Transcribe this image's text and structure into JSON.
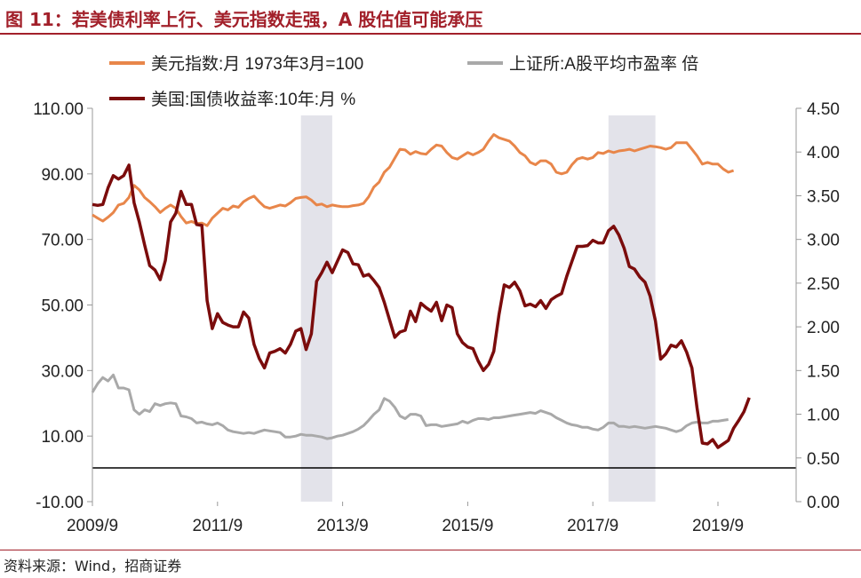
{
  "header": {
    "title": "图 11：若美债利率上行、美元指数走强，A 股估值可能承压"
  },
  "footer": {
    "source": "资料来源：Wind，招商证券"
  },
  "chart_data": {
    "type": "line",
    "x_tick_labels": [
      "2009/9",
      "2011/9",
      "2013/9",
      "2015/9",
      "2017/9",
      "2019/9"
    ],
    "left_axis": {
      "ylim": [
        -10,
        110
      ],
      "ticks": [
        "-10.00",
        "10.00",
        "30.00",
        "50.00",
        "70.00",
        "90.00",
        "110.00"
      ]
    },
    "right_axis": {
      "ylim": [
        0,
        4.5
      ],
      "ticks": [
        "0.00",
        "0.50",
        "1.00",
        "1.50",
        "2.00",
        "2.50",
        "3.00",
        "3.50",
        "4.00",
        "4.50"
      ]
    },
    "shaded_periods": [
      [
        "2013/1",
        "2013/7"
      ],
      [
        "2017/12",
        "2018/9"
      ]
    ],
    "zero_line": 0,
    "colors": {
      "usd": "#e8864a",
      "pe": "#a9a9a9",
      "yield": "#7b0c0c",
      "shade": "#e3e3ea",
      "rule": "#a2202a"
    },
    "series": [
      {
        "name": "美元指数:月 1973年3月=100",
        "axis": "left",
        "x_start": "2009/9",
        "values": [
          77.5,
          76.5,
          75.6,
          76.8,
          78.2,
          80.5,
          81.0,
          82.8,
          86.5,
          85.1,
          82.8,
          81.5,
          80.0,
          78.2,
          79.5,
          80.5,
          79.5,
          77.0,
          75.0,
          75.5,
          74.8,
          75.0,
          74.2,
          76.5,
          78.0,
          79.5,
          79.0,
          80.2,
          79.8,
          81.5,
          82.5,
          83.2,
          81.5,
          80.0,
          79.5,
          80.0,
          80.5,
          80.2,
          81.2,
          82.5,
          82.8,
          83.0,
          82.0,
          80.5,
          80.8,
          80.0,
          80.5,
          80.2,
          80.0,
          80.0,
          80.3,
          80.5,
          81.0,
          83.0,
          86.0,
          87.5,
          90.5,
          92.0,
          94.8,
          97.5,
          97.3,
          96.0,
          96.8,
          96.2,
          96.0,
          97.5,
          98.8,
          98.5,
          96.5,
          95.0,
          94.5,
          95.5,
          96.5,
          95.8,
          96.5,
          97.5,
          100.0,
          102.0,
          101.0,
          100.5,
          100.0,
          98.5,
          96.5,
          95.5,
          93.5,
          92.8,
          94.0,
          94.0,
          93.0,
          90.5,
          90.0,
          90.5,
          92.8,
          94.5,
          95.0,
          94.5,
          95.0,
          96.5,
          96.2,
          97.0,
          96.5,
          97.0,
          97.2,
          97.5,
          97.0,
          97.5,
          98.0,
          98.5,
          98.3,
          98.0,
          97.5,
          98.0,
          99.5,
          99.5,
          99.5,
          97.5,
          95.5,
          93.0,
          93.5,
          93.0,
          93.0,
          91.5,
          90.5,
          91.0
        ]
      },
      {
        "name": "上证所:A股平均市盈率 倍",
        "axis": "right",
        "x_start": "2009/9",
        "values": [
          1.25,
          1.35,
          1.42,
          1.38,
          1.45,
          1.3,
          1.3,
          1.28,
          1.05,
          1.0,
          1.05,
          1.03,
          1.12,
          1.1,
          1.12,
          1.13,
          1.12,
          0.98,
          0.97,
          0.95,
          0.9,
          0.91,
          0.89,
          0.88,
          0.9,
          0.87,
          0.82,
          0.8,
          0.79,
          0.78,
          0.79,
          0.78,
          0.8,
          0.82,
          0.81,
          0.8,
          0.79,
          0.74,
          0.74,
          0.75,
          0.77,
          0.76,
          0.76,
          0.75,
          0.74,
          0.72,
          0.73,
          0.75,
          0.76,
          0.78,
          0.8,
          0.83,
          0.87,
          0.93,
          1.0,
          1.05,
          1.18,
          1.15,
          1.08,
          0.98,
          0.95,
          1.0,
          1.0,
          0.98,
          0.87,
          0.88,
          0.88,
          0.86,
          0.87,
          0.88,
          0.89,
          0.92,
          0.9,
          0.93,
          0.95,
          0.95,
          0.94,
          0.96,
          0.96,
          0.97,
          0.98,
          0.99,
          1.0,
          1.01,
          1.02,
          1.01,
          1.04,
          1.02,
          1.0,
          0.96,
          0.93,
          0.9,
          0.88,
          0.87,
          0.85,
          0.85,
          0.83,
          0.82,
          0.85,
          0.9,
          0.9,
          0.86,
          0.86,
          0.85,
          0.86,
          0.85,
          0.84,
          0.85,
          0.86,
          0.85,
          0.84,
          0.82,
          0.8,
          0.82,
          0.87,
          0.9,
          0.91,
          0.9,
          0.9,
          0.92,
          0.92,
          0.93,
          0.94
        ]
      },
      {
        "name": "美国:国债收益率:10年:月 %",
        "axis": "right",
        "x_start": "2009/9",
        "values": [
          3.4,
          3.39,
          3.4,
          3.59,
          3.73,
          3.69,
          3.73,
          3.85,
          3.42,
          3.2,
          2.94,
          2.7,
          2.65,
          2.54,
          2.76,
          3.2,
          3.3,
          3.55,
          3.4,
          3.4,
          3.17,
          3.16,
          2.3,
          1.98,
          2.15,
          2.05,
          2.02,
          2.0,
          2.0,
          2.17,
          2.1,
          1.8,
          1.64,
          1.53,
          1.7,
          1.72,
          1.75,
          1.7,
          1.8,
          1.95,
          1.98,
          1.74,
          1.92,
          2.52,
          2.62,
          2.74,
          2.62,
          2.75,
          2.88,
          2.85,
          2.72,
          2.71,
          2.58,
          2.6,
          2.53,
          2.45,
          2.28,
          2.08,
          1.88,
          1.94,
          1.96,
          2.18,
          2.06,
          2.27,
          2.22,
          2.18,
          2.28,
          2.07,
          2.25,
          2.22,
          1.92,
          1.82,
          1.77,
          1.75,
          1.61,
          1.5,
          1.57,
          1.72,
          2.14,
          2.48,
          2.45,
          2.51,
          2.41,
          2.24,
          2.26,
          2.23,
          2.3,
          2.21,
          2.31,
          2.35,
          2.38,
          2.58,
          2.75,
          2.92,
          2.92,
          2.93,
          2.99,
          2.96,
          2.96,
          3.1,
          3.15,
          3.05,
          2.9,
          2.69,
          2.66,
          2.57,
          2.51,
          2.35,
          2.07,
          1.63,
          1.69,
          1.79,
          1.77,
          1.84,
          1.71,
          1.53,
          1.07,
          0.67,
          0.66,
          0.71,
          0.62,
          0.66,
          0.7,
          0.84,
          0.93,
          1.03,
          1.19
        ]
      }
    ]
  }
}
